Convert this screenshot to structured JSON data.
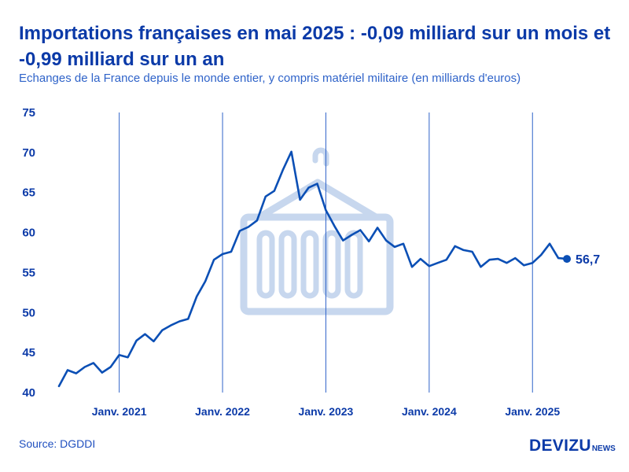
{
  "title": "Importations françaises en mai 2025 : -0,09 milliard sur un mois et -0,99 milliard sur un an",
  "subtitle": "Echanges de la France depuis le monde entier, y compris matériel militaire (en milliards d'euros)",
  "source": "Source: DGDDI",
  "logo": {
    "main": "DEVIZU",
    "sub": "NEWS"
  },
  "colors": {
    "line": "#0b4fb5",
    "title": "#0b3aa8",
    "text": "#1f4fbf",
    "grid": "#2f63c9",
    "watermark": "#c7d7ee"
  },
  "watermark_icon": "cargo-container-icon",
  "chart_data": {
    "type": "line",
    "title": "",
    "xlabel": "",
    "ylabel": "",
    "ylim": [
      40,
      75
    ],
    "yticks": [
      "75",
      "70",
      "65",
      "60",
      "55",
      "50",
      "45",
      "40"
    ],
    "xtick_labels": [
      "Janv. 2021",
      "Janv. 2022",
      "Janv. 2023",
      "Janv. 2024",
      "Janv. 2025"
    ],
    "x_start": "2020-06",
    "x_end": "2025-05",
    "grid": "vertical lines at each January",
    "last_value_label": "56,7",
    "series": [
      {
        "values": [
          40.8,
          42.8,
          42.4,
          43.2,
          43.7,
          42.5,
          43.2,
          44.7,
          44.4,
          46.5,
          47.3,
          46.4,
          47.8,
          48.4,
          48.9,
          49.2,
          52.0,
          53.9,
          56.6,
          57.3,
          57.6,
          60.2,
          60.7,
          61.5,
          64.5,
          65.2,
          67.8,
          70.1,
          64.1,
          65.6,
          66.1,
          62.8,
          60.8,
          59.0,
          59.7,
          60.3,
          58.9,
          60.6,
          59.0,
          58.2,
          58.6,
          55.7,
          56.7,
          55.8,
          56.2,
          56.6,
          58.3,
          57.8,
          57.6,
          55.7,
          56.6,
          56.7,
          56.2,
          56.8,
          55.9,
          56.2,
          57.2,
          58.6,
          56.8,
          56.7
        ]
      }
    ]
  }
}
